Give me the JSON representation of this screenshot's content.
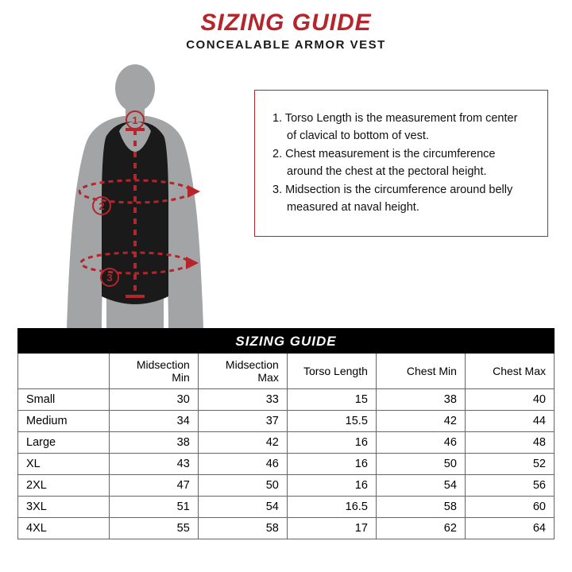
{
  "colors": {
    "accent_red": "#b6252c",
    "body_black": "#1a1a1a",
    "body_grey": "#a3a4a5",
    "table_header_bg": "#000000",
    "border_grey": "#666666"
  },
  "header": {
    "title": "SIZING GUIDE",
    "subtitle": "CONCEALABLE ARMOR VEST"
  },
  "diagram": {
    "markers": [
      "1",
      "2",
      "3"
    ]
  },
  "instructions": {
    "items": [
      "1. Torso Length is the measurement from center of clavical to bottom of vest.",
      "2. Chest measurement is the circumference around the chest at the pectoral height.",
      "3. Midsection is the circumference around belly measured at naval height."
    ]
  },
  "table": {
    "title": "SIZING GUIDE",
    "columns": [
      "",
      "Midsection Min",
      "Midsection Max",
      "Torso Length",
      "Chest Min",
      "Chest Max"
    ],
    "rows": [
      [
        "Small",
        "30",
        "33",
        "15",
        "38",
        "40"
      ],
      [
        "Medium",
        "34",
        "37",
        "15.5",
        "42",
        "44"
      ],
      [
        "Large",
        "38",
        "42",
        "16",
        "46",
        "48"
      ],
      [
        "XL",
        "43",
        "46",
        "16",
        "50",
        "52"
      ],
      [
        "2XL",
        "47",
        "50",
        "16",
        "54",
        "56"
      ],
      [
        "3XL",
        "51",
        "54",
        "16.5",
        "58",
        "60"
      ],
      [
        "4XL",
        "55",
        "58",
        "17",
        "62",
        "64"
      ]
    ]
  }
}
